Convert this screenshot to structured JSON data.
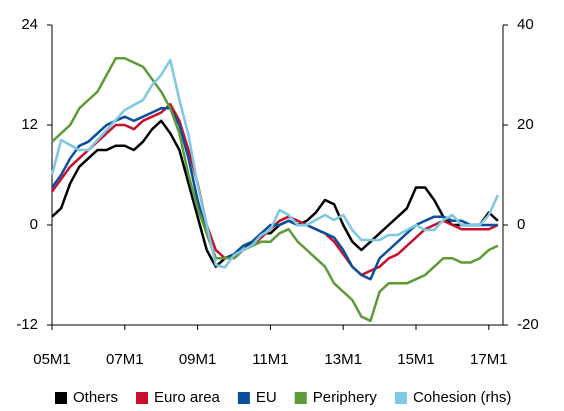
{
  "chart_data": {
    "type": "line",
    "categories": [
      "05M1",
      null,
      null,
      null,
      null,
      null,
      null,
      null,
      "07M1",
      null,
      null,
      null,
      null,
      null,
      null,
      null,
      "09M1",
      null,
      null,
      null,
      null,
      null,
      null,
      null,
      "11M1",
      null,
      null,
      null,
      null,
      null,
      null,
      null,
      "13M1",
      null,
      null,
      null,
      null,
      null,
      null,
      null,
      "15M1",
      null,
      null,
      null,
      null,
      null,
      null,
      null,
      "17M1",
      null
    ],
    "ylim": [
      -12,
      24
    ],
    "yticks": [
      -12,
      0,
      12,
      24
    ],
    "y2lim": [
      -20,
      40
    ],
    "y2ticks": [
      -20,
      0,
      20,
      40
    ],
    "legend": "bottom",
    "series": [
      {
        "name": "Others",
        "color": "#000000",
        "values": [
          1,
          2,
          5,
          7,
          8,
          9,
          9,
          9.5,
          9.5,
          9,
          10,
          11.5,
          12.5,
          11,
          9,
          5,
          1,
          -3,
          -5,
          -4,
          -4,
          -3,
          -2,
          -1,
          -1,
          0,
          0.5,
          0,
          0.5,
          1.5,
          3,
          2.5,
          0,
          -2,
          -3,
          -2,
          -1,
          0,
          1,
          2,
          4.5,
          4.5,
          3,
          1,
          0,
          0,
          0,
          0,
          1.5,
          0.5
        ]
      },
      {
        "name": "Euro area",
        "color": "#c8102e",
        "values": [
          4,
          5.5,
          7,
          8,
          9,
          10,
          11,
          12,
          12,
          11.5,
          12.5,
          13,
          13.5,
          14.5,
          12.5,
          9,
          5,
          0,
          -3,
          -4,
          -3.5,
          -3,
          -2.5,
          -1.5,
          -0.5,
          0.5,
          1,
          0.5,
          0,
          -0.5,
          -1,
          -2,
          -3.5,
          -5,
          -6,
          -5.5,
          -5,
          -4,
          -3.5,
          -2.5,
          -1.5,
          -0.5,
          0,
          0.5,
          0,
          -0.5,
          -0.5,
          -0.5,
          -0.5,
          0
        ]
      },
      {
        "name": "EU",
        "color": "#0b4f9c",
        "values": [
          4.5,
          6,
          8,
          9.5,
          10,
          11,
          12,
          12.5,
          13,
          12.5,
          13,
          13.5,
          14,
          14,
          12,
          8,
          3,
          -1,
          -4,
          -4,
          -3.5,
          -2.5,
          -2,
          -1,
          0,
          0,
          0.5,
          0,
          0,
          -0.5,
          -1,
          -1.5,
          -3,
          -5,
          -6,
          -6.5,
          -4,
          -3,
          -2,
          -1,
          0,
          0.5,
          1,
          1,
          0.5,
          0.5,
          0,
          0,
          0,
          0
        ]
      },
      {
        "name": "Periphery",
        "color": "#5e9a35",
        "values": [
          10,
          11,
          12,
          14,
          15,
          16,
          18,
          20,
          20,
          19.5,
          19,
          17.5,
          16,
          14,
          11,
          6,
          2,
          -1,
          -4,
          -4,
          -4,
          -3,
          -2.5,
          -2,
          -2,
          -1,
          -0.5,
          -2,
          -3,
          -4,
          -5,
          -7,
          -8,
          -9,
          -11,
          -11.5,
          -8,
          -7,
          -7,
          -7,
          -6.5,
          -6,
          -5,
          -4,
          -4,
          -4.5,
          -4.5,
          -4,
          -3,
          -2.5
        ]
      },
      {
        "name": "Cohesion (rhs)",
        "color": "#7ec8e3",
        "axis": "y2",
        "values": [
          10,
          17,
          16,
          15,
          15,
          17,
          19,
          21,
          23,
          24,
          25,
          28,
          30,
          33,
          25,
          18,
          8,
          0,
          -8,
          -8.5,
          -6,
          -5,
          -4,
          -2,
          -1,
          3,
          2,
          0,
          0,
          1,
          2,
          1,
          2,
          -1,
          -3,
          -3,
          -3,
          -2,
          -2,
          -1,
          0,
          -1,
          -1,
          1,
          2,
          0,
          0,
          0,
          2,
          6
        ]
      }
    ]
  }
}
